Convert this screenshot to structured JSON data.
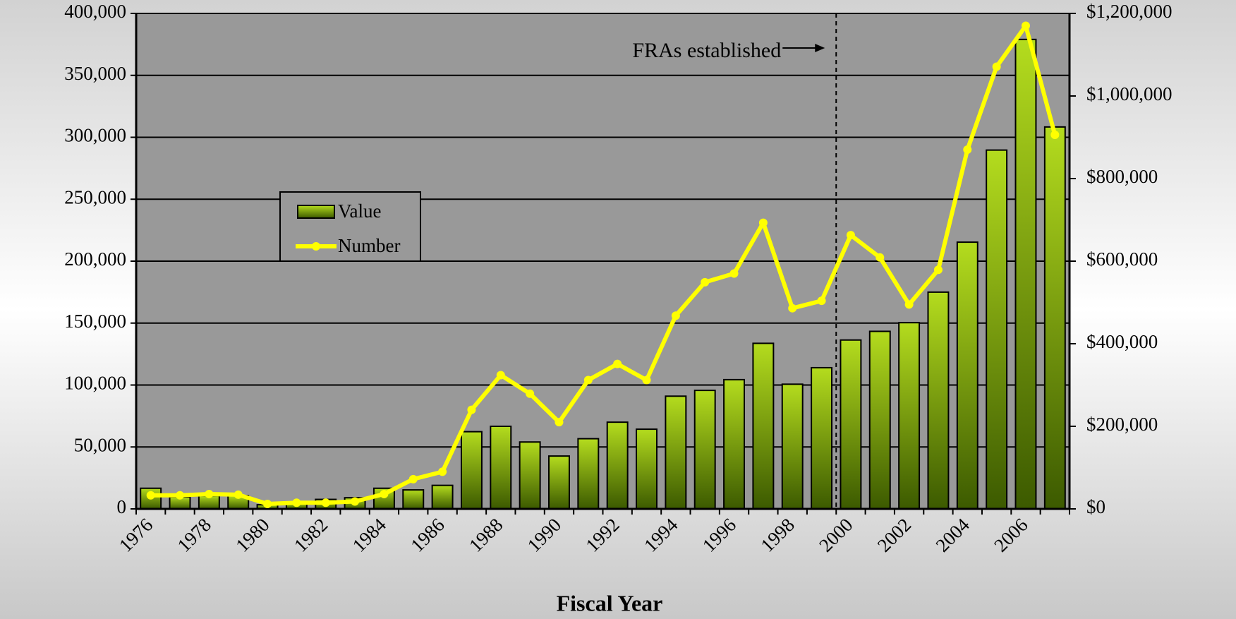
{
  "chart_data": {
    "type": "bar",
    "x_label": "Fiscal Year",
    "annotation": "FRAs established",
    "categories": [
      "1976",
      null,
      "1978",
      null,
      "1980",
      null,
      "1982",
      null,
      "1984",
      null,
      "1986",
      null,
      "1988",
      null,
      "1990",
      null,
      "1992",
      null,
      "1994",
      null,
      "1996",
      null,
      "1998",
      null,
      "2000",
      null,
      "2002",
      null,
      "2004",
      null,
      "2006",
      null
    ],
    "series": [
      {
        "name": "Value",
        "type": "bar",
        "axis": "y2",
        "color": "#8fbf10",
        "values": [
          50000,
          29000,
          32000,
          32000,
          10000,
          17000,
          23000,
          27000,
          50000,
          46000,
          57000,
          187000,
          200000,
          162000,
          128000,
          170000,
          210000,
          193000,
          273000,
          287000,
          313000,
          401000,
          302000,
          342000,
          409000,
          430000,
          451000,
          525000,
          646000,
          869000,
          1137000,
          925000
        ]
      },
      {
        "name": "Number",
        "type": "line",
        "axis": "y",
        "color": "#ffff00",
        "values": [
          11000,
          11000,
          12000,
          11500,
          4000,
          5000,
          5000,
          6000,
          12000,
          24000,
          30000,
          80000,
          108000,
          93000,
          70000,
          104000,
          117000,
          104000,
          156000,
          183000,
          190000,
          231000,
          162000,
          168000,
          221000,
          203000,
          165000,
          193000,
          290000,
          357000,
          390000,
          302000
        ]
      }
    ],
    "ylim": [
      0,
      400000
    ],
    "yticks": [
      0,
      {
        "value": 50000,
        "label": "50,000"
      },
      {
        "value": 100000,
        "label": "100,000"
      },
      {
        "value": 150000,
        "label": "150,000"
      },
      {
        "value": 200000,
        "label": "200,000"
      },
      {
        "value": 250000,
        "label": "250,000"
      },
      {
        "value": 300000,
        "label": "300,000"
      },
      {
        "value": 350000,
        "label": "350,000"
      },
      {
        "value": 400000,
        "label": "400,000"
      }
    ],
    "y2lim": [
      0,
      1200000
    ],
    "y2ticks": [
      {
        "value": 0,
        "label": "$0"
      },
      {
        "value": 200000,
        "label": "$200,000"
      },
      {
        "value": 400000,
        "label": "$400,000"
      },
      {
        "value": 600000,
        "label": "$600,000"
      },
      {
        "value": 800000,
        "label": "$800,000"
      },
      {
        "value": 1000000,
        "label": "$1,000,000"
      },
      {
        "value": 1200000,
        "label": "$1,200,000"
      }
    ],
    "grid": true,
    "legend": "upper left"
  }
}
